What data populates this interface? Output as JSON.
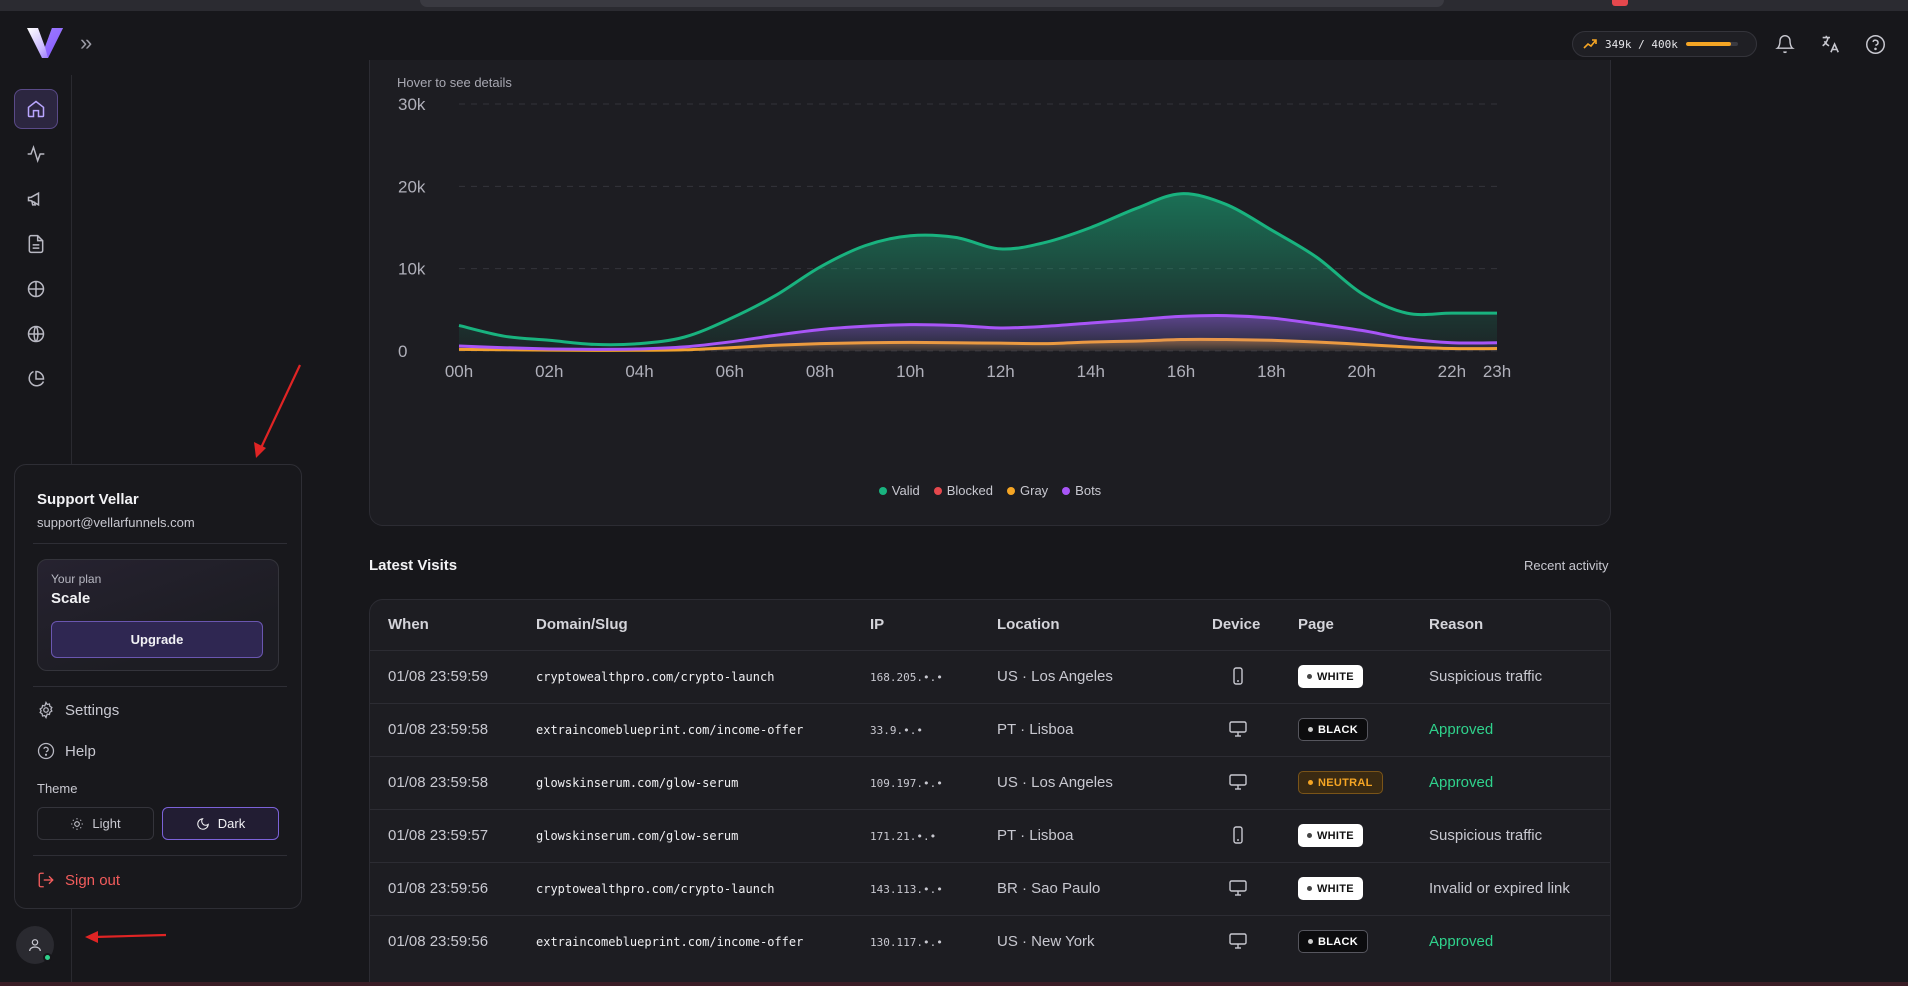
{
  "topbar": {
    "usage": {
      "text": "349k / 400k",
      "fraction": 0.8725,
      "accent": "#f5a524"
    }
  },
  "sidebar": {
    "items": [
      {
        "icon": "home-icon",
        "active": true
      },
      {
        "icon": "activity-icon",
        "active": false
      },
      {
        "icon": "megaphone-icon",
        "active": false
      },
      {
        "icon": "document-icon",
        "active": false
      },
      {
        "icon": "crosshair-icon",
        "active": false
      },
      {
        "icon": "globe-icon",
        "active": false
      },
      {
        "icon": "pie-chart-icon",
        "active": false
      }
    ]
  },
  "chart": {
    "hint": "Hover to see details"
  },
  "chart_data": {
    "type": "area",
    "x": [
      "00h",
      "01h",
      "02h",
      "03h",
      "04h",
      "05h",
      "06h",
      "07h",
      "08h",
      "09h",
      "10h",
      "11h",
      "12h",
      "13h",
      "14h",
      "15h",
      "16h",
      "17h",
      "18h",
      "19h",
      "20h",
      "21h",
      "22h",
      "23h"
    ],
    "xticks": [
      "00h",
      "02h",
      "04h",
      "06h",
      "08h",
      "10h",
      "12h",
      "14h",
      "16h",
      "18h",
      "20h",
      "22h",
      "23h"
    ],
    "yticks": [
      "0",
      "10k",
      "20k",
      "30k"
    ],
    "ylim": [
      0,
      30000
    ],
    "grid": true,
    "legend_position": "bottom",
    "series": [
      {
        "name": "Valid",
        "color": "#19b37f",
        "values": [
          3100,
          1800,
          1300,
          800,
          900,
          1700,
          3900,
          6700,
          10200,
          12800,
          14000,
          13800,
          12400,
          13200,
          15000,
          17300,
          19100,
          17800,
          14700,
          11400,
          7000,
          4600,
          4600,
          4600
        ]
      },
      {
        "name": "Blocked",
        "color": "#e5484d",
        "values": [
          0,
          0,
          0,
          0,
          0,
          0,
          0,
          0,
          0,
          0,
          0,
          0,
          0,
          0,
          0,
          0,
          0,
          0,
          0,
          0,
          0,
          0,
          0,
          0
        ]
      },
      {
        "name": "Gray",
        "color": "#f5a524",
        "values": [
          200,
          150,
          100,
          80,
          90,
          150,
          400,
          700,
          900,
          1000,
          1050,
          1000,
          950,
          900,
          1100,
          1200,
          1400,
          1400,
          1300,
          1100,
          800,
          500,
          300,
          300
        ]
      },
      {
        "name": "Bots",
        "color": "#a855f7",
        "values": [
          600,
          400,
          250,
          200,
          250,
          500,
          1100,
          1900,
          2600,
          3000,
          3200,
          3100,
          2800,
          3000,
          3400,
          3800,
          4200,
          4300,
          4000,
          3300,
          2500,
          1500,
          1000,
          1000
        ]
      }
    ]
  },
  "visits": {
    "title": "Latest Visits",
    "subtitle": "Recent activity",
    "columns": [
      "When",
      "Domain/Slug",
      "IP",
      "Location",
      "Device",
      "Page",
      "Reason"
    ],
    "rows": [
      {
        "when": "01/08 23:59:59",
        "domain": "cryptowealthpro.com/crypto-launch",
        "ip": "168.205.•.•",
        "location": "US · Los Angeles",
        "device": "mobile",
        "page": "WHITE",
        "reason": "Suspicious traffic"
      },
      {
        "when": "01/08 23:59:58",
        "domain": "extraincomeblueprint.com/income-offer",
        "ip": "33.9.•.•",
        "location": "PT · Lisboa",
        "device": "desktop",
        "page": "BLACK",
        "reason": "Approved"
      },
      {
        "when": "01/08 23:59:58",
        "domain": "glowskinserum.com/glow-serum",
        "ip": "109.197.•.•",
        "location": "US · Los Angeles",
        "device": "desktop",
        "page": "NEUTRAL",
        "reason": "Approved"
      },
      {
        "when": "01/08 23:59:57",
        "domain": "glowskinserum.com/glow-serum",
        "ip": "171.21.•.•",
        "location": "PT · Lisboa",
        "device": "mobile",
        "page": "WHITE",
        "reason": "Suspicious traffic"
      },
      {
        "when": "01/08 23:59:56",
        "domain": "cryptowealthpro.com/crypto-launch",
        "ip": "143.113.•.•",
        "location": "BR · Sao Paulo",
        "device": "desktop",
        "page": "WHITE",
        "reason": "Invalid or expired link"
      },
      {
        "when": "01/08 23:59:56",
        "domain": "extraincomeblueprint.com/income-offer",
        "ip": "130.117.•.•",
        "location": "US · New York",
        "device": "desktop",
        "page": "BLACK",
        "reason": "Approved"
      }
    ]
  },
  "user_menu": {
    "name": "Support Vellar",
    "email": "support@vellarfunnels.com",
    "plan_label": "Your plan",
    "plan_name": "Scale",
    "upgrade_label": "Upgrade",
    "settings_label": "Settings",
    "help_label": "Help",
    "theme_label": "Theme",
    "theme_light": "Light",
    "theme_dark": "Dark",
    "theme_selected": "Dark",
    "signout_label": "Sign out"
  }
}
